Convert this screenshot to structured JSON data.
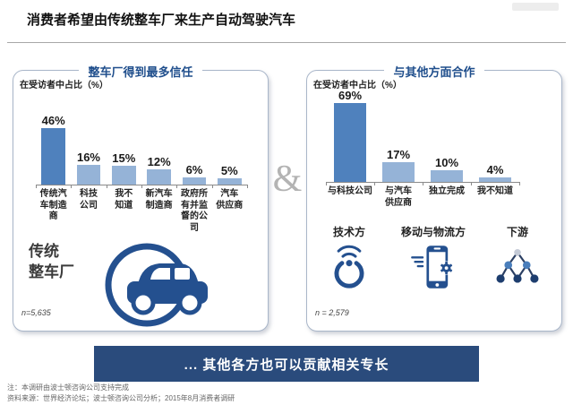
{
  "header": {
    "title": "消费者希望由传统整车厂来生产自动驾驶汽车"
  },
  "colors": {
    "panel_title": "#1f4e8c",
    "bar_highlight": "#4f81bd",
    "bar_normal": "#95b3d7",
    "banner_bg": "#2a4b7c",
    "icon_navy": "#24508f",
    "ampersand_gray": "#b3b3b3"
  },
  "chart_data": [
    {
      "type": "bar",
      "title": "整车厂得到最多信任",
      "ylabel": "在受访者中占比（%）",
      "categories": [
        "传统汽\n车制造\n商",
        "科技\n公司",
        "我不\n知道",
        "新汽车\n制造商",
        "政府所\n有并监\n督的公\n司",
        "汽车\n供应商"
      ],
      "values": [
        46,
        16,
        15,
        12,
        6,
        5
      ],
      "value_suffix": "%",
      "highlight_index": 0,
      "sample_size": "n=5,635",
      "legend": "none",
      "grid": false
    },
    {
      "type": "bar",
      "title": "与其他方面合作",
      "ylabel": "在受访者中占比（%）",
      "categories": [
        "与科技公司",
        "与汽车\n供应商",
        "独立完成",
        "我不知道"
      ],
      "values": [
        69,
        17,
        10,
        4
      ],
      "value_suffix": "%",
      "highlight_index": 0,
      "sample_size": "n = 2,579",
      "legend": "none",
      "grid": false
    }
  ],
  "left_panel": {
    "caption": "传统\n整车厂",
    "icon": "car-icon"
  },
  "middle": {
    "ampersand": "&"
  },
  "right_panel": {
    "partners": [
      {
        "label": "技术方",
        "icon": "wifi-device-icon"
      },
      {
        "label": "移动与物流方",
        "icon": "smartphone-logistics-icon"
      },
      {
        "label": "下游",
        "icon": "network-nodes-icon"
      }
    ]
  },
  "banner": {
    "text": "... 其他各方也可以贡献相关专长"
  },
  "footer": {
    "note": "注：本调研由波士顿咨询公司支持完成",
    "source": "资料来源：世界经济论坛；波士顿咨询公司分析；2015年8月消费者调研"
  }
}
